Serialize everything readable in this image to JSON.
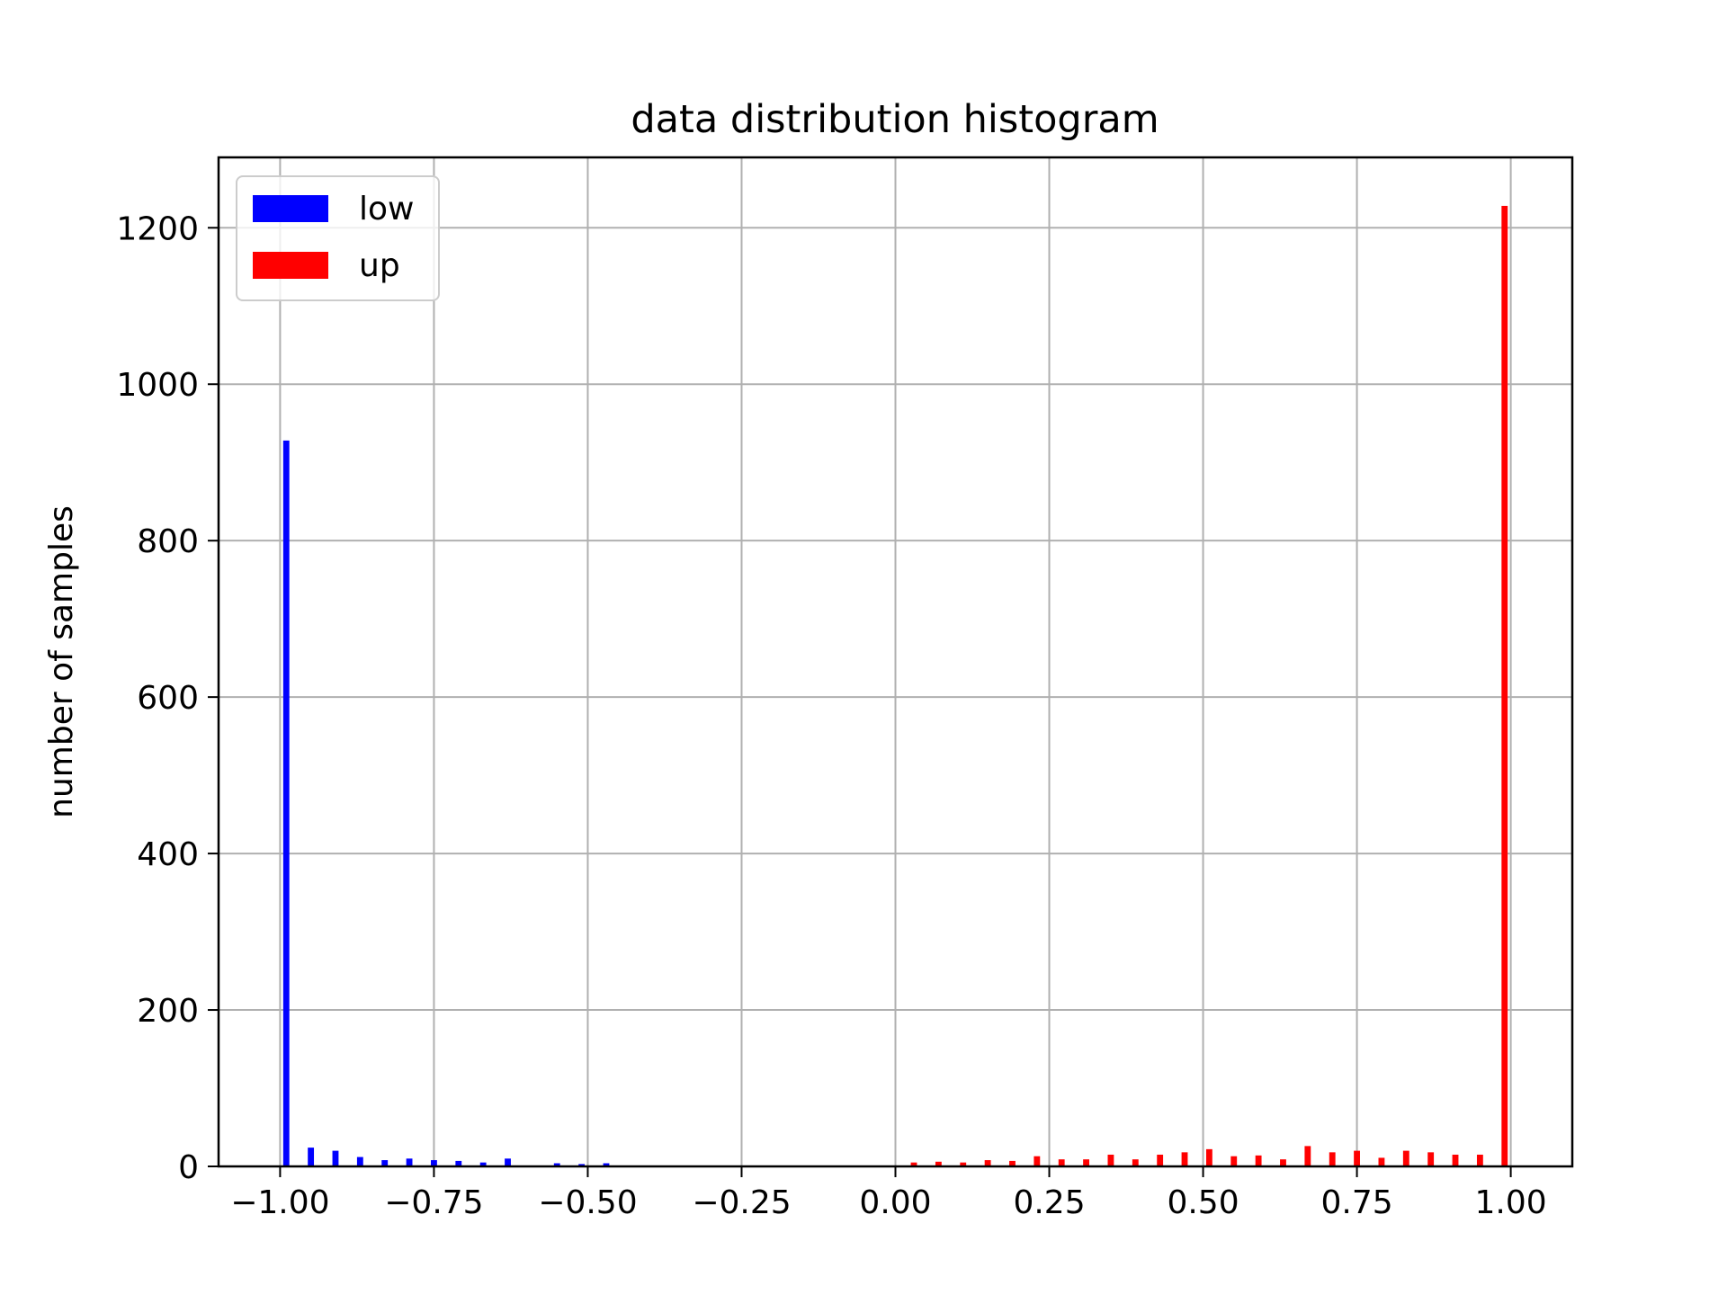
{
  "chart_data": {
    "type": "bar",
    "title": "data distribution histogram",
    "xlabel": "",
    "ylabel": "number of samples",
    "xlim": [
      -1.1,
      1.1
    ],
    "ylim": [
      0,
      1290
    ],
    "xticks": [
      -1.0,
      -0.75,
      -0.5,
      -0.25,
      0.0,
      0.25,
      0.5,
      0.75,
      1.0
    ],
    "xtick_labels": [
      "−1.00",
      "−0.75",
      "−0.50",
      "−0.25",
      "0.00",
      "0.25",
      "0.50",
      "0.75",
      "1.00"
    ],
    "yticks": [
      0,
      200,
      400,
      600,
      800,
      1000,
      1200
    ],
    "ytick_labels": [
      "0",
      "200",
      "400",
      "600",
      "800",
      "1000",
      "1200"
    ],
    "grid": true,
    "legend_position": "top-left",
    "bin_width": 0.04,
    "series": [
      {
        "name": "low",
        "color": "#0000ff",
        "x": [
          -0.99,
          -0.95,
          -0.91,
          -0.87,
          -0.83,
          -0.79,
          -0.75,
          -0.71,
          -0.67,
          -0.63,
          -0.59,
          -0.55,
          -0.51,
          -0.47
        ],
        "values": [
          928,
          24,
          20,
          12,
          8,
          10,
          8,
          7,
          5,
          10,
          1,
          4,
          3,
          4
        ]
      },
      {
        "name": "up",
        "color": "#ff0000",
        "x": [
          0.03,
          0.07,
          0.11,
          0.15,
          0.19,
          0.23,
          0.27,
          0.31,
          0.35,
          0.39,
          0.43,
          0.47,
          0.51,
          0.55,
          0.59,
          0.63,
          0.67,
          0.71,
          0.75,
          0.79,
          0.83,
          0.87,
          0.91,
          0.95,
          0.99
        ],
        "values": [
          5,
          6,
          5,
          8,
          7,
          13,
          9,
          9,
          15,
          9,
          15,
          18,
          22,
          13,
          14,
          9,
          26,
          18,
          20,
          11,
          20,
          18,
          15,
          15,
          1228
        ]
      }
    ]
  }
}
